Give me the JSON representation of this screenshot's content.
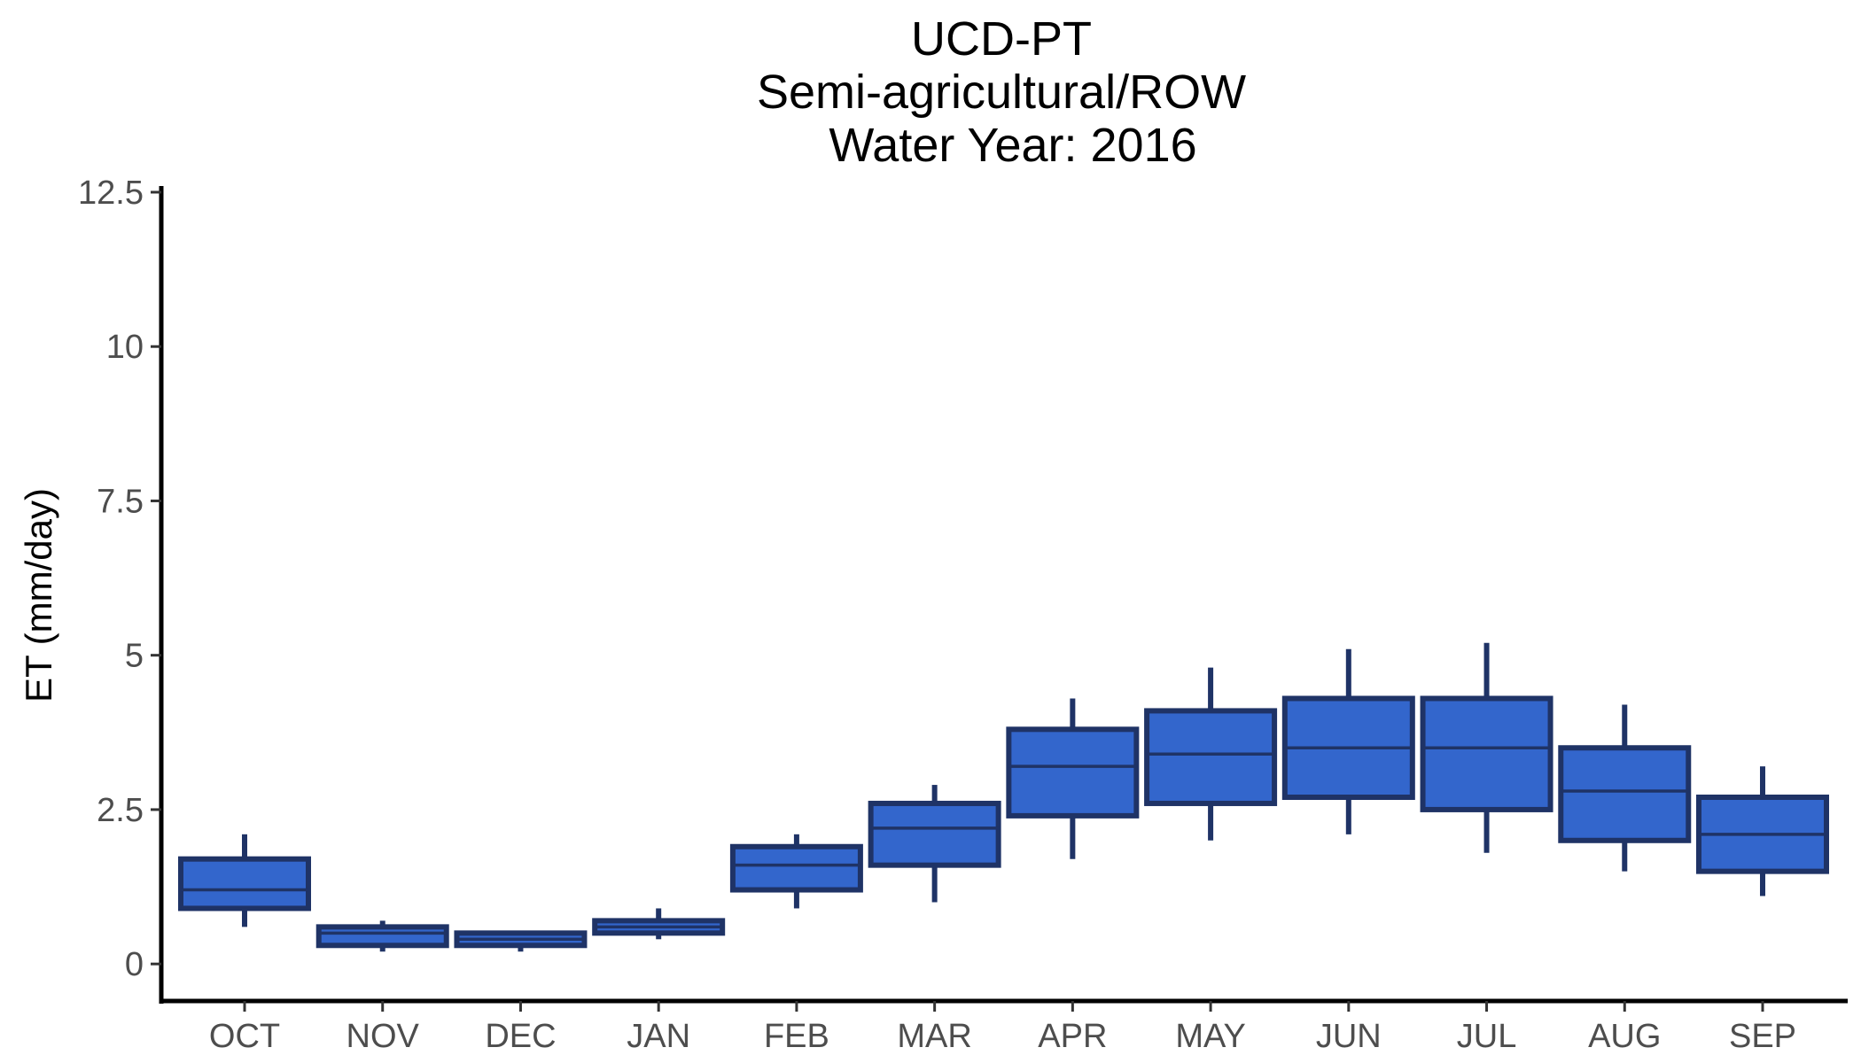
{
  "chart_data": {
    "type": "boxplot",
    "title_lines": [
      "UCD-PT",
      "Semi-agricultural/ROW",
      "Water Year: 2016"
    ],
    "xlabel": "",
    "ylabel": "ET (mm/day)",
    "ylim": [
      -0.6,
      12.6
    ],
    "yticks": [
      0,
      2.5,
      5,
      7.5,
      10,
      12.5
    ],
    "ytick_labels": [
      "0",
      "2.5",
      "5",
      "7.5",
      "10",
      "12.5"
    ],
    "categories": [
      "OCT",
      "NOV",
      "DEC",
      "JAN",
      "FEB",
      "MAR",
      "APR",
      "MAY",
      "JUN",
      "JUL",
      "AUG",
      "SEP"
    ],
    "boxes": [
      {
        "category": "OCT",
        "whisker_low": 0.6,
        "q1": 0.9,
        "median": 1.2,
        "q3": 1.7,
        "whisker_high": 2.1
      },
      {
        "category": "NOV",
        "whisker_low": 0.2,
        "q1": 0.3,
        "median": 0.5,
        "q3": 0.6,
        "whisker_high": 0.7
      },
      {
        "category": "DEC",
        "whisker_low": 0.2,
        "q1": 0.3,
        "median": 0.4,
        "q3": 0.5,
        "whisker_high": 0.5
      },
      {
        "category": "JAN",
        "whisker_low": 0.4,
        "q1": 0.5,
        "median": 0.6,
        "q3": 0.7,
        "whisker_high": 0.9
      },
      {
        "category": "FEB",
        "whisker_low": 0.9,
        "q1": 1.2,
        "median": 1.6,
        "q3": 1.9,
        "whisker_high": 2.1
      },
      {
        "category": "MAR",
        "whisker_low": 1.0,
        "q1": 1.6,
        "median": 2.2,
        "q3": 2.6,
        "whisker_high": 2.9
      },
      {
        "category": "APR",
        "whisker_low": 1.7,
        "q1": 2.4,
        "median": 3.2,
        "q3": 3.8,
        "whisker_high": 4.3
      },
      {
        "category": "MAY",
        "whisker_low": 2.0,
        "q1": 2.6,
        "median": 3.4,
        "q3": 4.1,
        "whisker_high": 4.8
      },
      {
        "category": "JUN",
        "whisker_low": 2.1,
        "q1": 2.7,
        "median": 3.5,
        "q3": 4.3,
        "whisker_high": 5.1
      },
      {
        "category": "JUL",
        "whisker_low": 1.8,
        "q1": 2.5,
        "median": 3.5,
        "q3": 4.3,
        "whisker_high": 5.2
      },
      {
        "category": "AUG",
        "whisker_low": 1.5,
        "q1": 2.0,
        "median": 2.8,
        "q3": 3.5,
        "whisker_high": 4.2
      },
      {
        "category": "SEP",
        "whisker_low": 1.1,
        "q1": 1.5,
        "median": 2.1,
        "q3": 2.7,
        "whisker_high": 3.2
      }
    ],
    "grid": false,
    "legend": "none",
    "colors": {
      "box_fill": "#3366cc",
      "box_outline": "#1f3366",
      "axis": "#000000",
      "tick_label": "#4d4d4d",
      "background": "#ffffff"
    }
  }
}
